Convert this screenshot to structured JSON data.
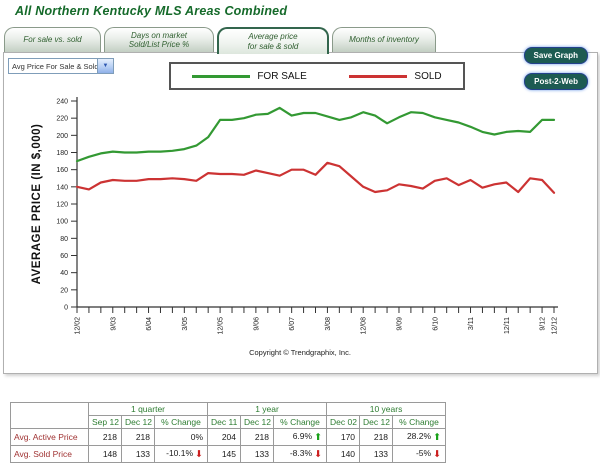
{
  "title": "All Northern Kentucky MLS Areas Combined",
  "tabs": [
    {
      "label": "For sale vs. sold",
      "active": false
    },
    {
      "label": "Days on market\nSold/List Price %",
      "active": false
    },
    {
      "label": "Average price\nfor sale & sold",
      "active": true
    },
    {
      "label": "Months of inventory",
      "active": false
    }
  ],
  "dropdown": {
    "value": "Avg Price For Sale & Sold"
  },
  "buttons": {
    "save_graph": "Save Graph",
    "post_to_web": "Post-2-Web"
  },
  "legend": {
    "items": [
      {
        "label": "FOR SALE"
      },
      {
        "label": "SOLD"
      }
    ]
  },
  "colors": {
    "title_green": "#156a2a",
    "for_sale_line": "#339933",
    "sold_line": "#cc3333",
    "button_bg": "#1d5b52",
    "table_header_text": "#2e7d32",
    "table_row_label": "#a03333",
    "arrow_up": "#19a119",
    "arrow_down": "#cc1f1f"
  },
  "chart_data": {
    "type": "line",
    "title": "",
    "xlabel": "",
    "ylabel": "AVERAGE PRICE (IN $,000)",
    "ylim": [
      0,
      240
    ],
    "ytick_step": 20,
    "grid": false,
    "legend_position": "top",
    "x_labeled_every": 3,
    "x": [
      "12/02",
      "3/03",
      "6/03",
      "9/03",
      "12/03",
      "3/04",
      "6/04",
      "9/04",
      "12/04",
      "3/05",
      "6/05",
      "9/05",
      "12/05",
      "3/06",
      "6/06",
      "9/06",
      "12/06",
      "3/07",
      "6/07",
      "9/07",
      "12/07",
      "3/08",
      "6/08",
      "9/08",
      "12/08",
      "3/09",
      "6/09",
      "9/09",
      "12/09",
      "3/10",
      "6/10",
      "9/10",
      "12/10",
      "3/11",
      "6/11",
      "9/11",
      "12/11",
      "3/12",
      "6/12",
      "9/12",
      "12/12"
    ],
    "series": [
      {
        "name": "FOR SALE",
        "color": "#339933",
        "values": [
          170,
          175,
          179,
          181,
          180,
          180,
          181,
          181,
          182,
          184,
          188,
          198,
          218,
          218,
          220,
          224,
          225,
          232,
          223,
          226,
          226,
          222,
          218,
          221,
          227,
          223,
          214,
          221,
          227,
          226,
          221,
          218,
          215,
          210,
          204,
          201,
          204,
          205,
          204,
          218,
          218
        ]
      },
      {
        "name": "SOLD",
        "color": "#cc3333",
        "values": [
          140,
          137,
          145,
          148,
          147,
          147,
          149,
          149,
          150,
          149,
          147,
          156,
          155,
          155,
          154,
          159,
          156,
          153,
          160,
          160,
          154,
          168,
          164,
          152,
          140,
          134,
          136,
          143,
          141,
          138,
          147,
          150,
          142,
          148,
          139,
          143,
          145,
          134,
          150,
          148,
          133
        ]
      }
    ],
    "footnote": "Copyright © Trendgraphix, Inc."
  },
  "table": {
    "groups": [
      "1 quarter",
      "1 year",
      "10 years"
    ],
    "col_headers": [
      "Sep 12",
      "Dec 12",
      "% Change",
      "Dec 11",
      "Dec 12",
      "% Change",
      "Dec 02",
      "Dec 12",
      "% Change"
    ],
    "rows": [
      {
        "label": "Avg. Active Price",
        "cells": [
          "218",
          "218",
          "0%",
          "204",
          "218",
          "6.9%",
          "170",
          "218",
          "28.2%"
        ],
        "arrows": [
          null,
          null,
          null,
          null,
          null,
          "up",
          null,
          null,
          "up"
        ]
      },
      {
        "label": "Avg. Sold Price",
        "cells": [
          "148",
          "133",
          "-10.1%",
          "145",
          "133",
          "-8.3%",
          "140",
          "133",
          "-5%"
        ],
        "arrows": [
          null,
          null,
          "down",
          null,
          null,
          "down",
          null,
          null,
          "down"
        ]
      }
    ]
  }
}
